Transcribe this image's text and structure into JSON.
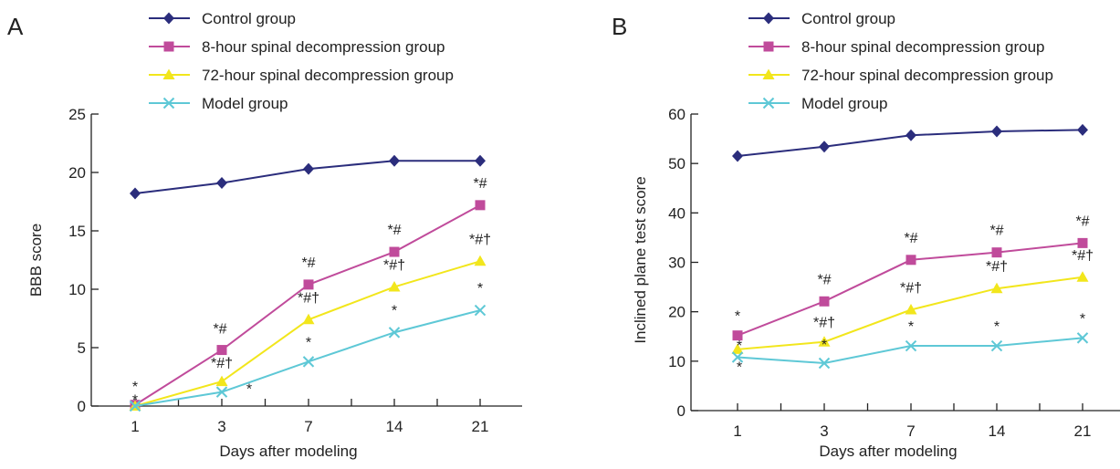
{
  "figure": {
    "legend": [
      {
        "name": "Control group",
        "color": "#2b2d7c",
        "marker": "diamond"
      },
      {
        "name": "8-hour spinal decompression group",
        "color": "#c04b9b",
        "marker": "square"
      },
      {
        "name": "72-hour spinal decompression group",
        "color": "#f2e61c",
        "marker": "triangle"
      },
      {
        "name": "Model group",
        "color": "#5ec8d6",
        "marker": "x"
      }
    ]
  },
  "chart_data": [
    {
      "panel": "A",
      "type": "line",
      "xlabel": "Days after modeling",
      "ylabel": "BBB score",
      "categories": [
        "1",
        "3",
        "7",
        "14",
        "21"
      ],
      "ylim": [
        0,
        25
      ],
      "yticks": [
        "0",
        "5",
        "10",
        "15",
        "20",
        "25"
      ],
      "grid": false,
      "legend_position": "top",
      "series": [
        {
          "name": "Control group",
          "values": [
            18.2,
            19.1,
            20.3,
            21.0,
            21.0
          ],
          "labels": [
            "",
            "",
            "",
            "",
            ""
          ]
        },
        {
          "name": "8-hour spinal decompression group",
          "values": [
            0.1,
            4.8,
            10.4,
            13.2,
            17.2
          ],
          "labels": [
            "*",
            "*#",
            "*#",
            "*#",
            "*#"
          ]
        },
        {
          "name": "72-hour spinal decompression group",
          "values": [
            0.0,
            2.1,
            7.4,
            10.2,
            12.4
          ],
          "labels": [
            "",
            "*#†",
            "*#†",
            "*#†",
            "*#†"
          ]
        },
        {
          "name": "Model group",
          "values": [
            0.0,
            1.2,
            3.8,
            6.3,
            8.2
          ],
          "labels": [
            "*",
            "*",
            "*",
            "*",
            "*"
          ]
        }
      ]
    },
    {
      "panel": "B",
      "type": "line",
      "xlabel": "Days after modeling",
      "ylabel": "Inclined plane test score",
      "categories": [
        "1",
        "3",
        "7",
        "14",
        "21"
      ],
      "ylim": [
        0,
        60
      ],
      "yticks": [
        "0",
        "10",
        "20",
        "30",
        "40",
        "50",
        "60"
      ],
      "grid": false,
      "legend_position": "top",
      "series": [
        {
          "name": "Control group",
          "values": [
            51.5,
            53.4,
            55.7,
            56.5,
            56.8
          ],
          "labels": [
            "",
            "",
            "",
            "",
            ""
          ]
        },
        {
          "name": "8-hour spinal decompression group",
          "values": [
            15.2,
            22.1,
            30.5,
            32.0,
            33.9
          ],
          "labels": [
            "*",
            "*#",
            "*#",
            "*#",
            "*#"
          ]
        },
        {
          "name": "72-hour spinal decompression group",
          "values": [
            12.4,
            13.9,
            20.4,
            24.7,
            27.0
          ],
          "labels": [
            "*",
            "*#†",
            "*#†",
            "*#†",
            "*#†"
          ]
        },
        {
          "name": "Model group",
          "values": [
            10.8,
            9.6,
            13.1,
            13.1,
            14.7
          ],
          "labels": [
            "*",
            "*",
            "*",
            "*",
            "*"
          ]
        }
      ]
    }
  ]
}
